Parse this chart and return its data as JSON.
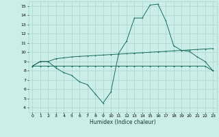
{
  "xlabel": "Humidex (Indice chaleur)",
  "xlim": [
    -0.5,
    23.5
  ],
  "ylim": [
    3.5,
    15.5
  ],
  "yticks": [
    4,
    5,
    6,
    7,
    8,
    9,
    10,
    11,
    12,
    13,
    14,
    15
  ],
  "xticks": [
    0,
    1,
    2,
    3,
    4,
    5,
    6,
    7,
    8,
    9,
    10,
    11,
    12,
    13,
    14,
    15,
    16,
    17,
    18,
    19,
    20,
    21,
    22,
    23
  ],
  "bg_color": "#cceee8",
  "grid_color": "#aad4cc",
  "line_color": "#1a6b60",
  "line1_x": [
    0,
    1,
    2,
    3,
    4,
    5,
    6,
    7,
    8,
    9,
    10,
    11,
    12,
    13,
    14,
    15,
    16,
    17,
    18,
    19,
    20,
    21,
    22,
    23
  ],
  "line1_y": [
    8.5,
    9.0,
    9.0,
    9.3,
    9.4,
    9.5,
    9.55,
    9.6,
    9.65,
    9.7,
    9.75,
    9.8,
    9.85,
    9.9,
    9.95,
    10.0,
    10.05,
    10.1,
    10.15,
    10.2,
    10.25,
    10.3,
    10.35,
    10.4
  ],
  "line2_x": [
    0,
    1,
    2,
    3,
    4,
    5,
    6,
    7,
    8,
    9,
    10,
    11,
    12,
    13,
    14,
    15,
    16,
    17,
    18,
    19,
    20,
    21,
    22,
    23
  ],
  "line2_y": [
    8.5,
    8.5,
    8.5,
    8.5,
    8.5,
    8.5,
    8.5,
    8.5,
    8.5,
    8.5,
    8.5,
    8.5,
    8.5,
    8.5,
    8.5,
    8.5,
    8.5,
    8.5,
    8.5,
    8.5,
    8.5,
    8.5,
    8.5,
    8.0
  ],
  "line3_x": [
    0,
    1,
    2,
    3,
    4,
    5,
    6,
    7,
    8,
    9,
    10,
    11,
    12,
    13,
    14,
    15,
    16,
    17,
    18,
    19,
    20,
    21,
    22,
    23
  ],
  "line3_y": [
    8.5,
    9.0,
    9.0,
    8.3,
    7.8,
    7.5,
    6.8,
    6.5,
    5.5,
    4.5,
    5.7,
    9.9,
    11.2,
    13.7,
    13.7,
    15.1,
    15.2,
    13.4,
    10.7,
    10.2,
    10.1,
    9.5,
    9.0,
    8.0
  ]
}
